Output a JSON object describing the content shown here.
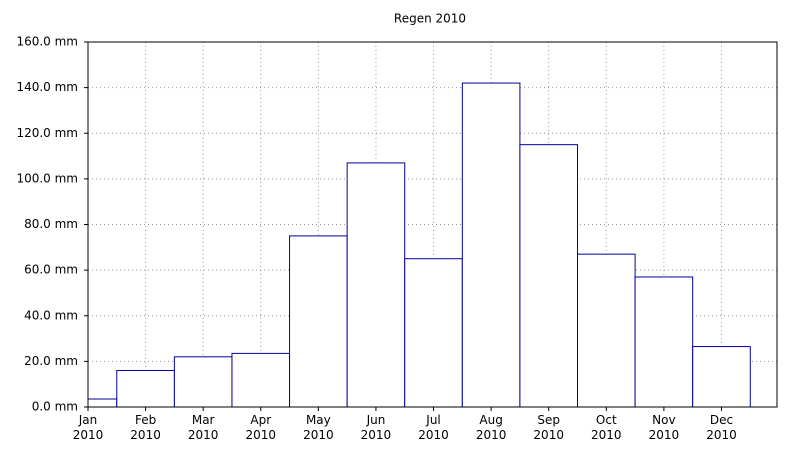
{
  "chart_data": {
    "type": "bar",
    "title": "Regen 2010",
    "categories": [
      "Jan 2010",
      "Feb 2010",
      "Mar 2010",
      "Apr 2010",
      "May 2010",
      "Jun 2010",
      "Jul 2010",
      "Aug 2010",
      "Sep 2010",
      "Oct 2010",
      "Nov 2010",
      "Dec 2010"
    ],
    "values": [
      3.5,
      16,
      22,
      23.5,
      75,
      107,
      65,
      142,
      115,
      67,
      57,
      26.5
    ],
    "color": "#0000a0",
    "ylim": [
      0,
      160
    ],
    "yticks": [
      {
        "value": 0,
        "label": "0.0 mm"
      },
      {
        "value": 20,
        "label": "20.0 mm"
      },
      {
        "value": 40,
        "label": "40.0 mm"
      },
      {
        "value": 60,
        "label": "60.0 mm"
      },
      {
        "value": 80,
        "label": "80.0 mm"
      },
      {
        "value": 100,
        "label": "100.0 mm"
      },
      {
        "value": 120,
        "label": "120.0 mm"
      },
      {
        "value": 140,
        "label": "140.0 mm"
      },
      {
        "value": 160,
        "label": "160.0 mm"
      }
    ],
    "grid": true
  }
}
